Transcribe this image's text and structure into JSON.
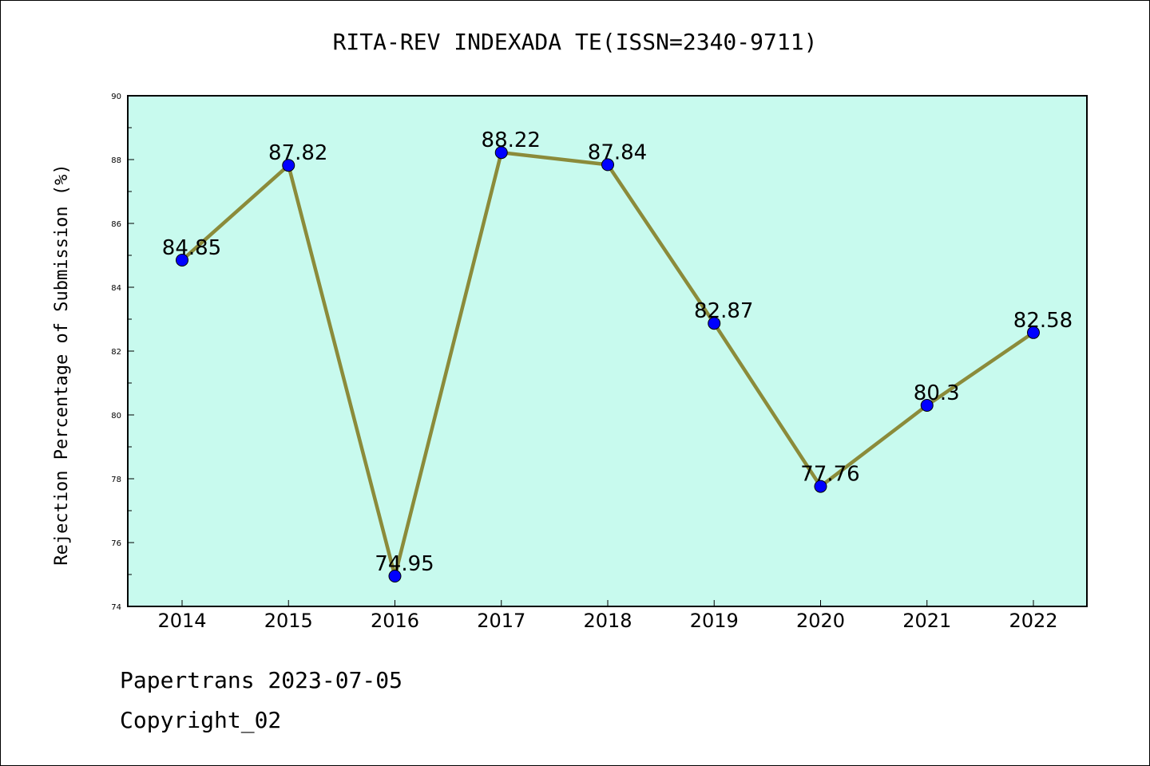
{
  "chart_data": {
    "type": "line",
    "title": "RITA-REV INDEXADA TE(ISSN=2340-9711)",
    "xlabel": "",
    "ylabel": "Rejection Percentage of Submission (%)",
    "categories": [
      "2014",
      "2015",
      "2016",
      "2017",
      "2018",
      "2019",
      "2020",
      "2021",
      "2022"
    ],
    "series": [
      {
        "values": [
          84.85,
          87.82,
          74.95,
          88.22,
          87.84,
          82.87,
          77.76,
          80.3,
          82.58
        ],
        "labels": [
          "84.85",
          "87.82",
          "74.95",
          "88.22",
          "87.84",
          "82.87",
          "77.76",
          "80.3",
          "82.58"
        ],
        "line_color": "#8B8B3A",
        "marker_color": "#0000FF"
      }
    ],
    "ylim": [
      74,
      90
    ],
    "yticks": [
      "74",
      "76",
      "78",
      "80",
      "82",
      "84",
      "86",
      "88",
      "90"
    ],
    "plot_background": "#C8FAEE",
    "grid": false,
    "legend": "none"
  },
  "footer": {
    "line1": "Papertrans 2023-07-05",
    "line2": "Copyright_02"
  }
}
